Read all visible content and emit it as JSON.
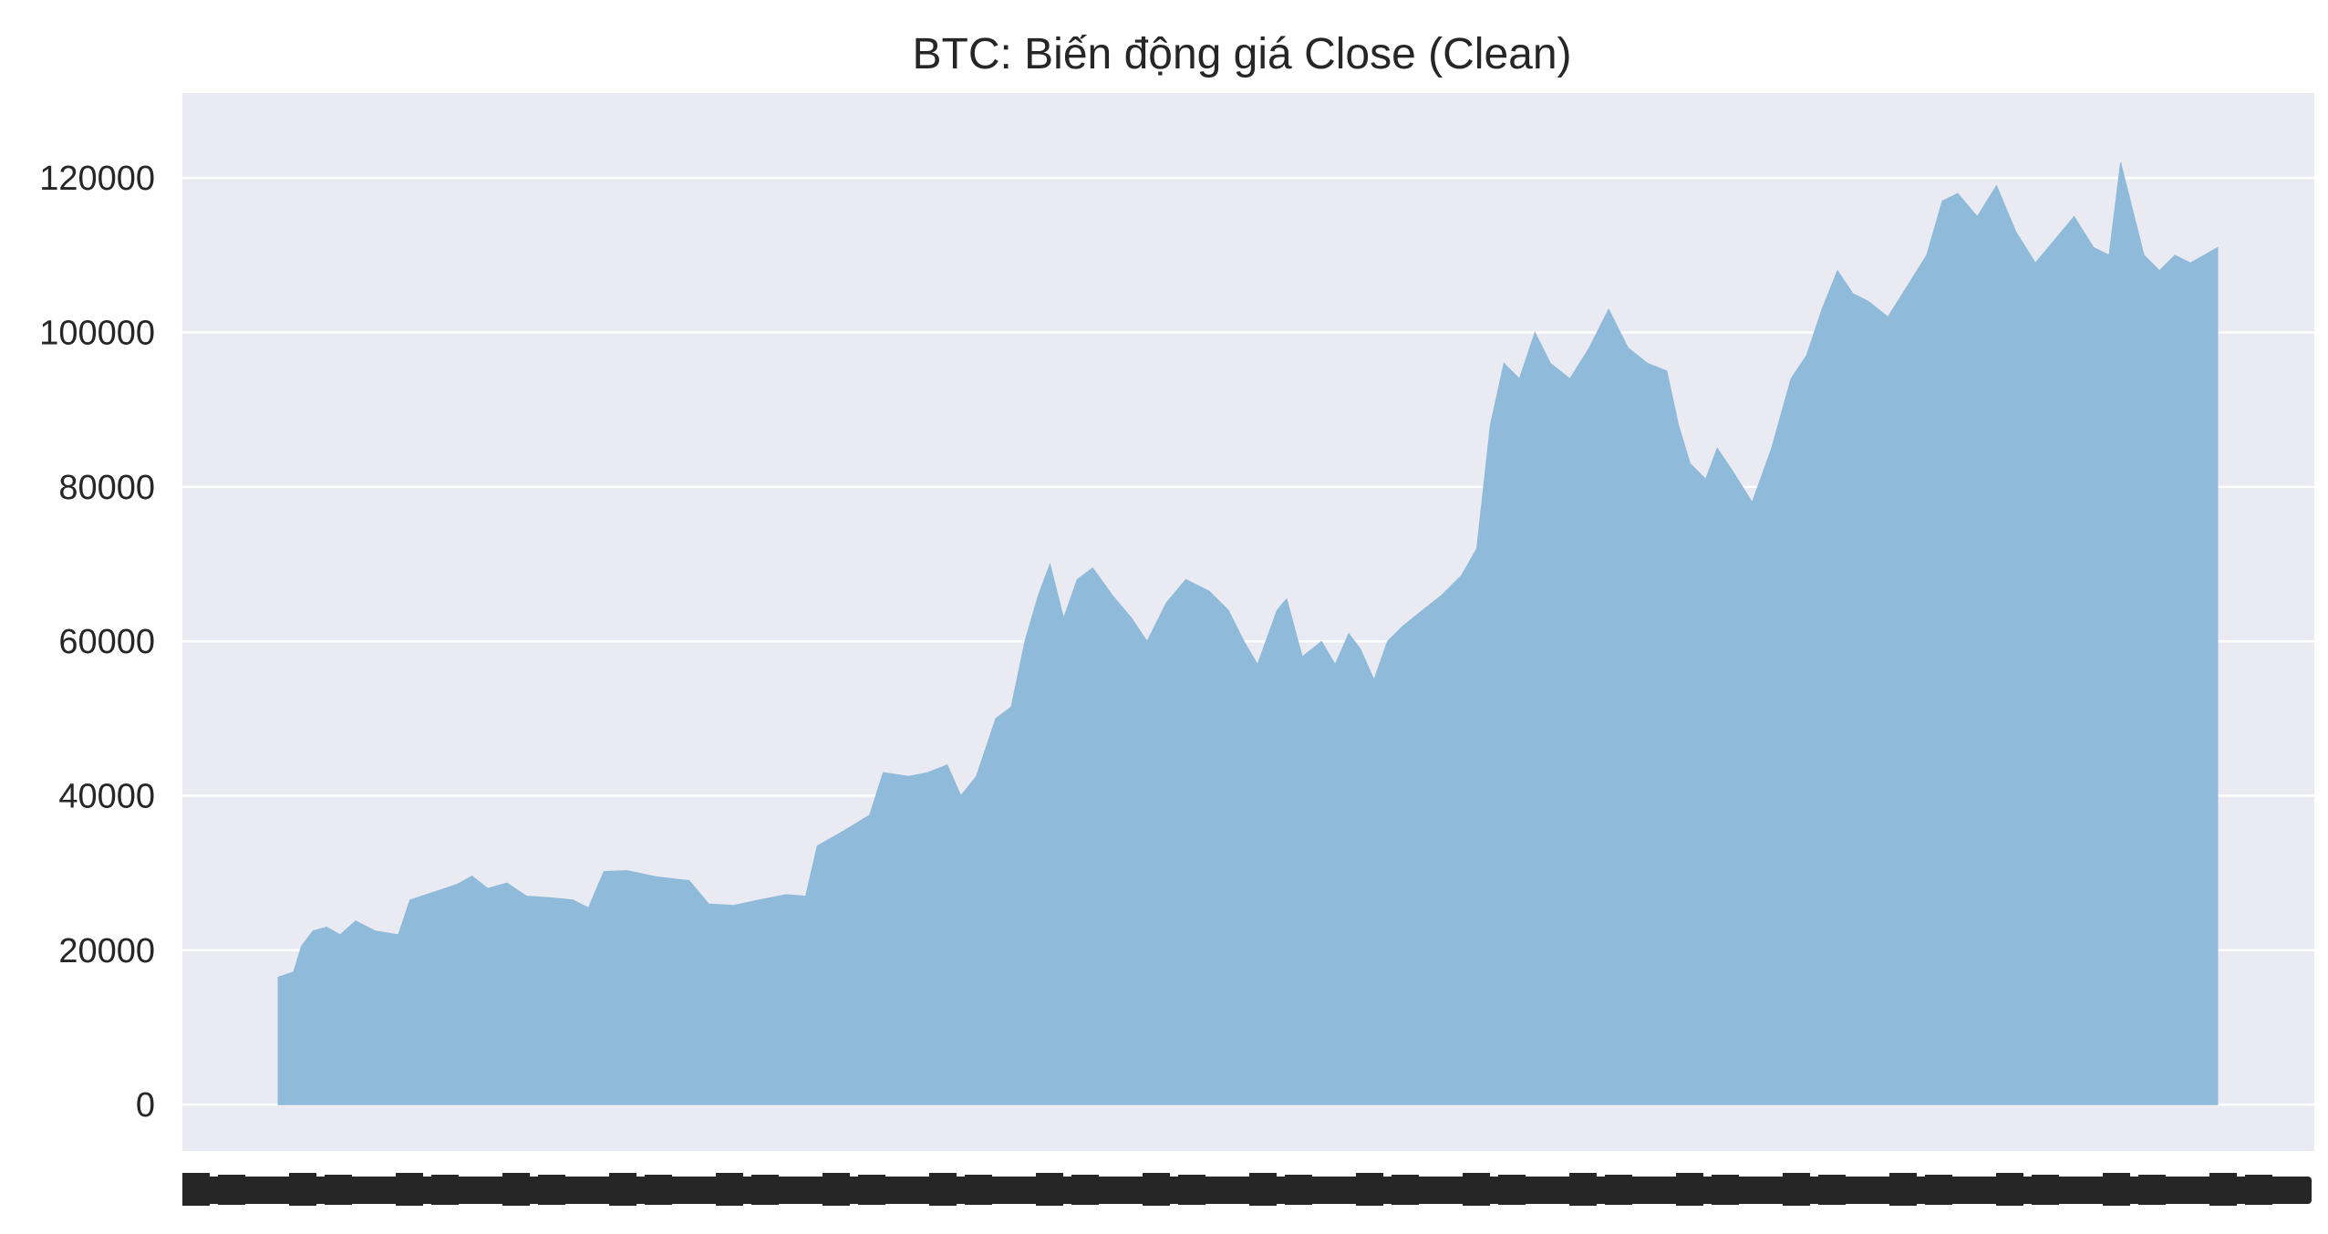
{
  "colors": {
    "plot_background": "#eaeaf2",
    "grid": "#ffffff",
    "area_fill": "#8fbad9",
    "text": "#262626"
  },
  "chart_data": {
    "type": "area",
    "title": "BTC: Biến động giá Close (Clean)",
    "xlabel": "",
    "ylabel": "",
    "ylim": [
      -6000,
      131000
    ],
    "grid": true,
    "legend": "none",
    "y_ticks": [
      0,
      20000,
      40000,
      60000,
      80000,
      100000,
      120000
    ],
    "x_tick_labels_overlapping": true,
    "x_index_range": [
      0,
      1000
    ],
    "series": [
      {
        "points": [
          [
            0,
            16500
          ],
          [
            8,
            17200
          ],
          [
            12,
            20500
          ],
          [
            18,
            22500
          ],
          [
            25,
            23000
          ],
          [
            32,
            22000
          ],
          [
            40,
            23800
          ],
          [
            50,
            22500
          ],
          [
            62,
            22000
          ],
          [
            68,
            26500
          ],
          [
            80,
            27500
          ],
          [
            92,
            28500
          ],
          [
            100,
            29600
          ],
          [
            108,
            28000
          ],
          [
            118,
            28700
          ],
          [
            128,
            27000
          ],
          [
            140,
            26800
          ],
          [
            152,
            26500
          ],
          [
            160,
            25500
          ],
          [
            168,
            30200
          ],
          [
            180,
            30300
          ],
          [
            195,
            29500
          ],
          [
            212,
            29000
          ],
          [
            222,
            26000
          ],
          [
            235,
            25800
          ],
          [
            248,
            26500
          ],
          [
            262,
            27200
          ],
          [
            272,
            27000
          ],
          [
            278,
            33500
          ],
          [
            292,
            35500
          ],
          [
            305,
            37500
          ],
          [
            312,
            43000
          ],
          [
            325,
            42500
          ],
          [
            335,
            43000
          ],
          [
            345,
            44000
          ],
          [
            352,
            40000
          ],
          [
            360,
            42500
          ],
          [
            370,
            50000
          ],
          [
            378,
            51500
          ],
          [
            385,
            60000
          ],
          [
            392,
            66000
          ],
          [
            398,
            70000
          ],
          [
            405,
            63000
          ],
          [
            412,
            68000
          ],
          [
            420,
            69500
          ],
          [
            430,
            66000
          ],
          [
            440,
            63000
          ],
          [
            448,
            60000
          ],
          [
            458,
            65000
          ],
          [
            468,
            68000
          ],
          [
            480,
            66500
          ],
          [
            490,
            64000
          ],
          [
            498,
            60000
          ],
          [
            505,
            57000
          ],
          [
            515,
            64000
          ],
          [
            520,
            65500
          ],
          [
            528,
            58000
          ],
          [
            538,
            60000
          ],
          [
            545,
            57000
          ],
          [
            552,
            61000
          ],
          [
            558,
            59000
          ],
          [
            565,
            55000
          ],
          [
            572,
            60000
          ],
          [
            580,
            62000
          ],
          [
            590,
            64000
          ],
          [
            600,
            66000
          ],
          [
            610,
            68500
          ],
          [
            618,
            72000
          ],
          [
            625,
            88000
          ],
          [
            632,
            96000
          ],
          [
            640,
            94000
          ],
          [
            648,
            100000
          ],
          [
            656,
            96000
          ],
          [
            666,
            94000
          ],
          [
            676,
            98000
          ],
          [
            686,
            103000
          ],
          [
            696,
            98000
          ],
          [
            706,
            96000
          ],
          [
            716,
            95000
          ],
          [
            722,
            88000
          ],
          [
            728,
            83000
          ],
          [
            736,
            81000
          ],
          [
            742,
            85000
          ],
          [
            750,
            82000
          ],
          [
            760,
            78000
          ],
          [
            770,
            85000
          ],
          [
            780,
            94000
          ],
          [
            788,
            97000
          ],
          [
            796,
            103000
          ],
          [
            804,
            108000
          ],
          [
            812,
            105000
          ],
          [
            820,
            104000
          ],
          [
            830,
            102000
          ],
          [
            840,
            106000
          ],
          [
            850,
            110000
          ],
          [
            858,
            117000
          ],
          [
            866,
            118000
          ],
          [
            876,
            115000
          ],
          [
            886,
            119000
          ],
          [
            896,
            113000
          ],
          [
            906,
            109000
          ],
          [
            916,
            112000
          ],
          [
            926,
            115000
          ],
          [
            936,
            111000
          ],
          [
            944,
            110000
          ],
          [
            950,
            122000
          ],
          [
            956,
            116000
          ],
          [
            962,
            110000
          ],
          [
            970,
            108000
          ],
          [
            978,
            110000
          ],
          [
            986,
            109000
          ],
          [
            1000,
            111000
          ]
        ]
      }
    ]
  }
}
